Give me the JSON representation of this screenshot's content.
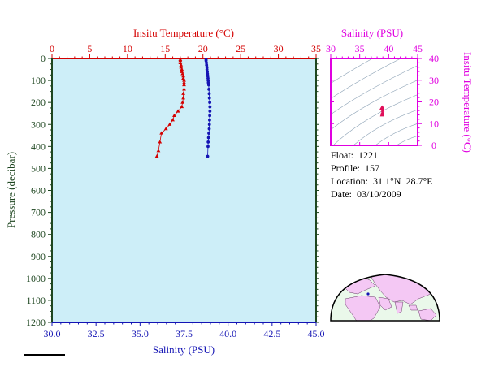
{
  "colors": {
    "temperature": "#d40000",
    "salinity_main": "#1414b4",
    "salinity_ts": "#e000e0",
    "pressure_axis": "#1e4620",
    "plot_bg": "#cdeef8",
    "ts_point": "#e0105a",
    "map_land": "#f4c8f4",
    "map_ocean": "#eaf8ea"
  },
  "info": {
    "float_label": "Float:",
    "float_value": "1221",
    "profile_label": "Profile:",
    "profile_value": "157",
    "location_label": "Location:",
    "location_value": "31.1°N  28.7°E",
    "date_label": "Date:",
    "date_value": "03/10/2009"
  },
  "chart_data": [
    {
      "type": "scatter",
      "title": "",
      "ylabel": "Pressure (decibar)",
      "ylim": [
        1200,
        0
      ],
      "y_ticks": [
        "0",
        "100",
        "200",
        "300",
        "400",
        "500",
        "600",
        "700",
        "800",
        "900",
        "1000",
        "1100",
        "1200"
      ],
      "grid": false,
      "top_axis": {
        "label": "Insitu Temperature (°C)",
        "lim": [
          0,
          35
        ],
        "ticks": [
          "0",
          "5",
          "10",
          "15",
          "20",
          "25",
          "30",
          "35"
        ]
      },
      "bottom_axis": {
        "label": "Salinity (PSU)",
        "lim": [
          30,
          45
        ],
        "ticks": [
          "30.0",
          "32.5",
          "35.0",
          "37.5",
          "40.0",
          "42.5",
          "45.0"
        ]
      },
      "series": [
        {
          "axis": "temperature",
          "marker": "triangle",
          "points": [
            {
              "x": 17.0,
              "y": 5
            },
            {
              "x": 17.0,
              "y": 10
            },
            {
              "x": 17.0,
              "y": 20
            },
            {
              "x": 17.1,
              "y": 30
            },
            {
              "x": 17.1,
              "y": 40
            },
            {
              "x": 17.2,
              "y": 50
            },
            {
              "x": 17.2,
              "y": 60
            },
            {
              "x": 17.3,
              "y": 70
            },
            {
              "x": 17.4,
              "y": 80
            },
            {
              "x": 17.4,
              "y": 90
            },
            {
              "x": 17.5,
              "y": 100
            },
            {
              "x": 17.5,
              "y": 110
            },
            {
              "x": 17.5,
              "y": 120
            },
            {
              "x": 17.5,
              "y": 140
            },
            {
              "x": 17.4,
              "y": 160
            },
            {
              "x": 17.4,
              "y": 180
            },
            {
              "x": 17.3,
              "y": 200
            },
            {
              "x": 17.2,
              "y": 220
            },
            {
              "x": 16.7,
              "y": 240
            },
            {
              "x": 16.2,
              "y": 260
            },
            {
              "x": 16.0,
              "y": 280
            },
            {
              "x": 15.6,
              "y": 300
            },
            {
              "x": 15.1,
              "y": 320
            },
            {
              "x": 14.5,
              "y": 340
            },
            {
              "x": 14.3,
              "y": 380
            },
            {
              "x": 14.1,
              "y": 420
            },
            {
              "x": 13.9,
              "y": 445
            }
          ]
        },
        {
          "axis": "salinity",
          "marker": "circle",
          "points": [
            {
              "x": 38.75,
              "y": 5
            },
            {
              "x": 38.75,
              "y": 10
            },
            {
              "x": 38.77,
              "y": 20
            },
            {
              "x": 38.78,
              "y": 30
            },
            {
              "x": 38.8,
              "y": 40
            },
            {
              "x": 38.8,
              "y": 50
            },
            {
              "x": 38.82,
              "y": 60
            },
            {
              "x": 38.83,
              "y": 70
            },
            {
              "x": 38.85,
              "y": 80
            },
            {
              "x": 38.86,
              "y": 90
            },
            {
              "x": 38.87,
              "y": 100
            },
            {
              "x": 38.88,
              "y": 110
            },
            {
              "x": 38.9,
              "y": 120
            },
            {
              "x": 38.91,
              "y": 140
            },
            {
              "x": 38.93,
              "y": 160
            },
            {
              "x": 38.94,
              "y": 180
            },
            {
              "x": 38.96,
              "y": 200
            },
            {
              "x": 38.97,
              "y": 220
            },
            {
              "x": 38.97,
              "y": 240
            },
            {
              "x": 38.96,
              "y": 260
            },
            {
              "x": 38.95,
              "y": 280
            },
            {
              "x": 38.94,
              "y": 300
            },
            {
              "x": 38.93,
              "y": 320
            },
            {
              "x": 38.91,
              "y": 340
            },
            {
              "x": 38.89,
              "y": 360
            },
            {
              "x": 38.87,
              "y": 380
            },
            {
              "x": 38.86,
              "y": 400
            },
            {
              "x": 38.84,
              "y": 445
            }
          ]
        }
      ]
    },
    {
      "type": "scatter",
      "title": "",
      "xlabel": "Salinity (PSU)",
      "ylabel": "Insitu Temperature (°C)",
      "xlim": [
        30,
        45
      ],
      "ylim": [
        0,
        40
      ],
      "x_ticks": [
        "30",
        "35",
        "40",
        "45"
      ],
      "y_ticks": [
        "0",
        "10",
        "20",
        "30",
        "40"
      ],
      "grid": false,
      "series": [
        {
          "points": [
            {
              "x": 38.75,
              "y": 17.0
            },
            {
              "x": 38.8,
              "y": 17.1
            },
            {
              "x": 38.85,
              "y": 17.4
            },
            {
              "x": 38.9,
              "y": 17.5
            },
            {
              "x": 38.95,
              "y": 17.3
            },
            {
              "x": 38.97,
              "y": 16.7
            },
            {
              "x": 38.95,
              "y": 16.0
            },
            {
              "x": 38.93,
              "y": 15.1
            },
            {
              "x": 38.89,
              "y": 14.4
            },
            {
              "x": 38.85,
              "y": 14.1
            },
            {
              "x": 38.84,
              "y": 13.9
            }
          ]
        }
      ]
    }
  ]
}
